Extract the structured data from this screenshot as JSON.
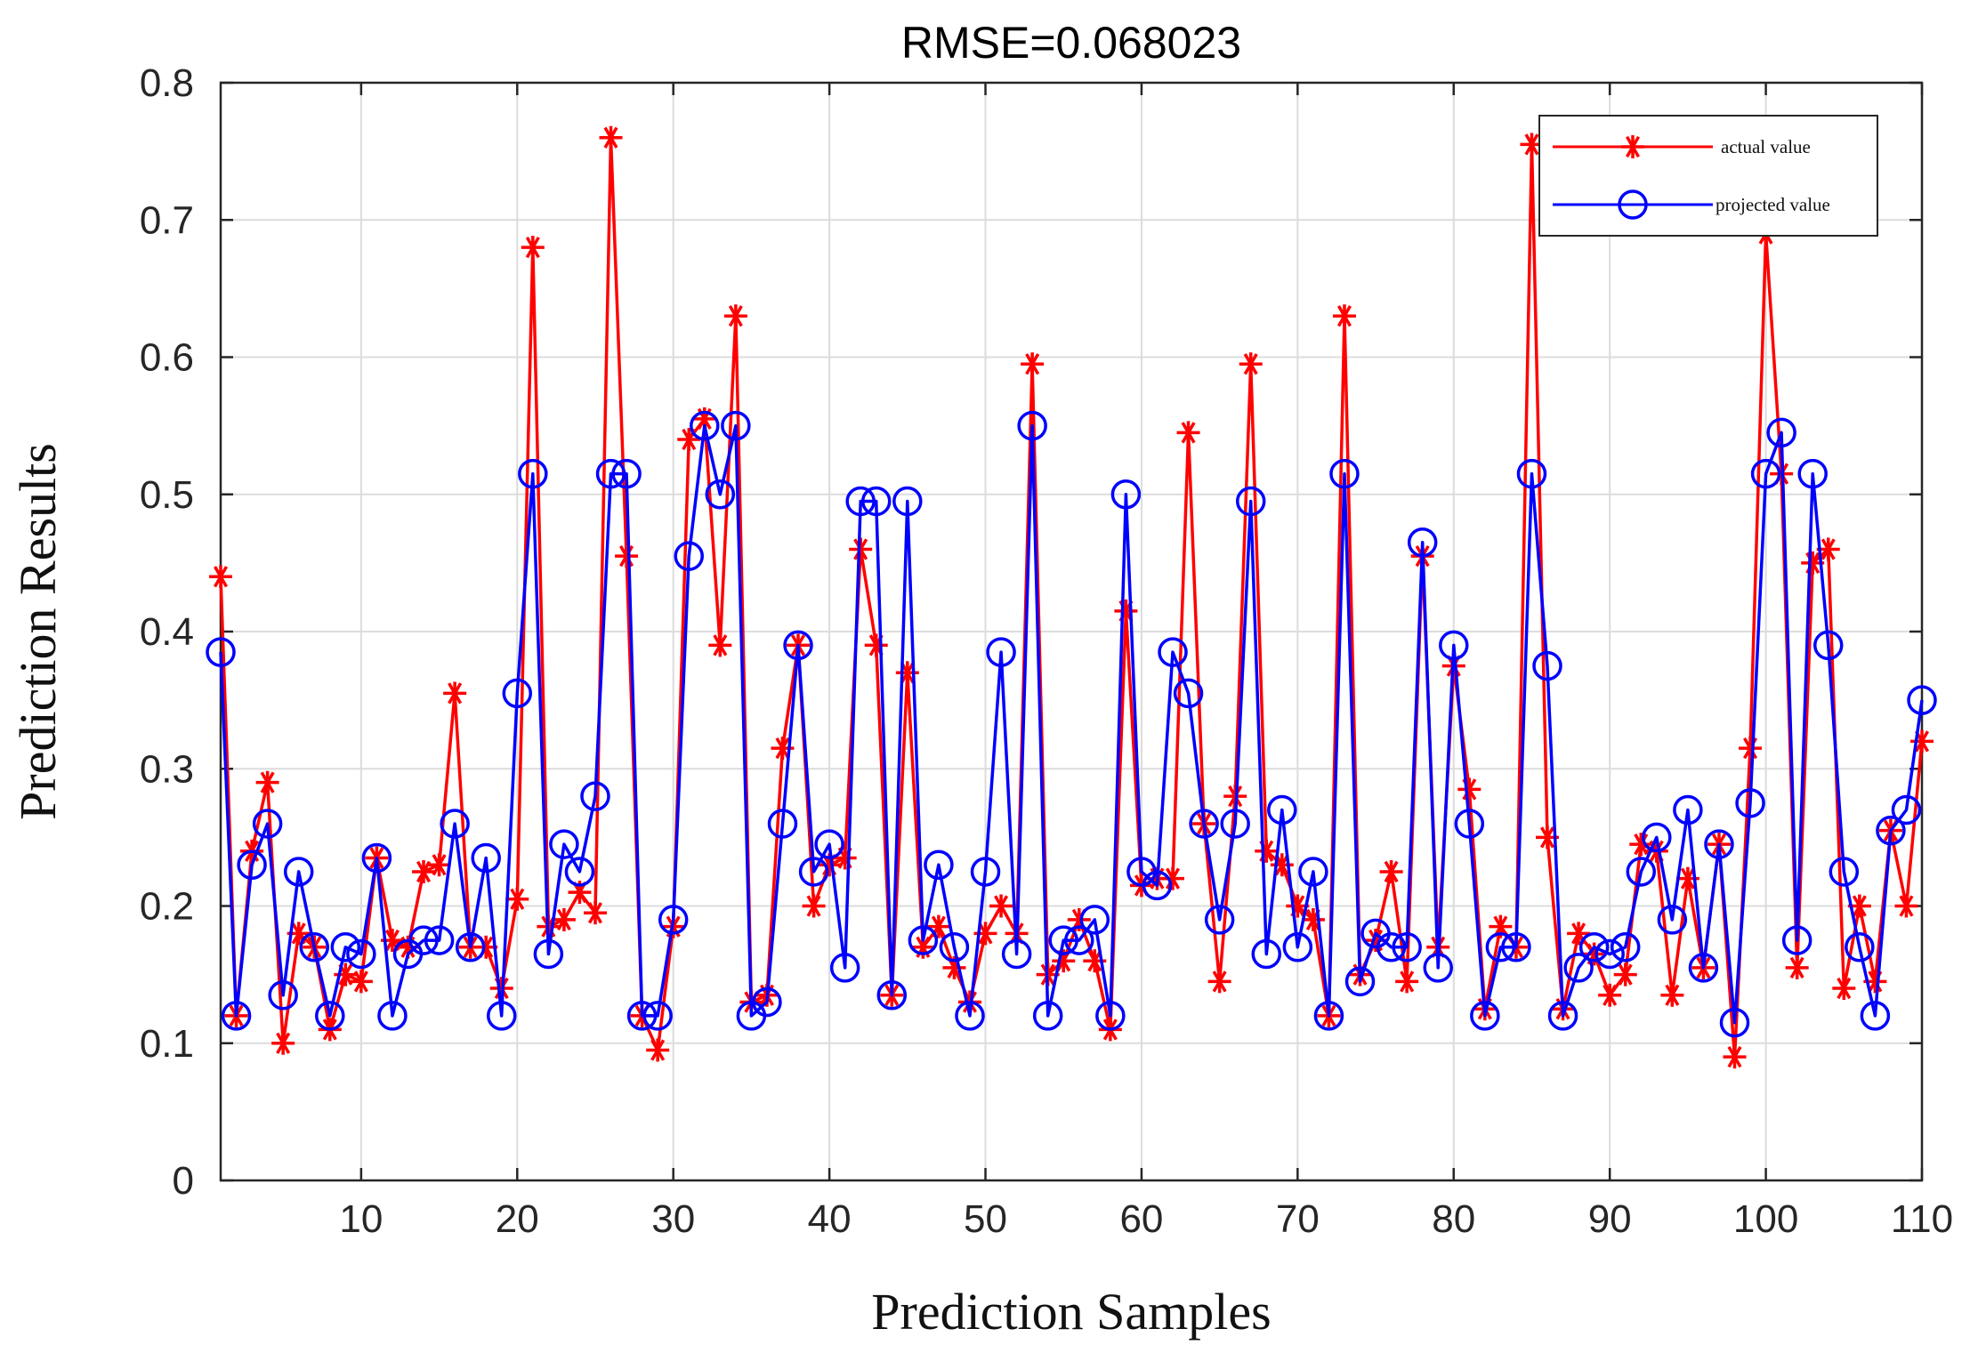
{
  "chart_data": {
    "type": "line",
    "title": "RMSE=0.068023",
    "xlabel": "Prediction Samples",
    "ylabel": "Prediction Results",
    "xlim": [
      1,
      110
    ],
    "ylim": [
      0,
      0.8
    ],
    "x_ticks": [
      10,
      20,
      30,
      40,
      50,
      60,
      70,
      80,
      90,
      100,
      110
    ],
    "y_ticks": [
      0,
      0.1,
      0.2,
      0.3,
      0.4,
      0.5,
      0.6,
      0.7,
      0.8
    ],
    "y_tick_labels": [
      "0",
      "0.1",
      "0.2",
      "0.3",
      "0.4",
      "0.5",
      "0.6",
      "0.7",
      "0.8"
    ],
    "grid": true,
    "legend_position": "top-right",
    "colors": {
      "actual": "#ff0000",
      "projected": "#0000ff"
    },
    "series": [
      {
        "name": "actual value",
        "marker": "asterisk",
        "values": [
          0.44,
          0.12,
          0.24,
          0.29,
          0.1,
          0.18,
          0.17,
          0.11,
          0.15,
          0.145,
          0.235,
          0.175,
          0.17,
          0.225,
          0.23,
          0.355,
          0.17,
          0.17,
          0.14,
          0.205,
          0.68,
          0.185,
          0.19,
          0.21,
          0.195,
          0.76,
          0.455,
          0.12,
          0.095,
          0.185,
          0.54,
          0.555,
          0.39,
          0.63,
          0.13,
          0.135,
          0.315,
          0.39,
          0.2,
          0.23,
          0.235,
          0.46,
          0.39,
          0.135,
          0.37,
          0.17,
          0.185,
          0.155,
          0.13,
          0.18,
          0.2,
          0.18,
          0.595,
          0.15,
          0.16,
          0.19,
          0.16,
          0.11,
          0.415,
          0.215,
          0.22,
          0.22,
          0.545,
          0.26,
          0.145,
          0.28,
          0.595,
          0.24,
          0.23,
          0.2,
          0.19,
          0.12,
          0.63,
          0.15,
          0.175,
          0.225,
          0.145,
          0.455,
          0.17,
          0.375,
          0.285,
          0.125,
          0.185,
          0.17,
          0.755,
          0.25,
          0.125,
          0.18,
          0.165,
          0.135,
          0.15,
          0.245,
          0.24,
          0.135,
          0.22,
          0.155,
          0.245,
          0.09,
          0.315,
          0.69,
          0.515,
          0.155,
          0.45,
          0.46,
          0.14,
          0.2,
          0.145,
          0.255,
          0.2,
          0.32
        ]
      },
      {
        "name": "projected value",
        "marker": "circle",
        "values": [
          0.385,
          0.12,
          0.23,
          0.26,
          0.135,
          0.225,
          0.17,
          0.12,
          0.17,
          0.165,
          0.235,
          0.12,
          0.165,
          0.175,
          0.175,
          0.26,
          0.17,
          0.235,
          0.12,
          0.355,
          0.515,
          0.165,
          0.245,
          0.225,
          0.28,
          0.515,
          0.515,
          0.12,
          0.12,
          0.19,
          0.455,
          0.55,
          0.5,
          0.55,
          0.12,
          0.13,
          0.26,
          0.39,
          0.225,
          0.245,
          0.155,
          0.495,
          0.495,
          0.135,
          0.495,
          0.175,
          0.23,
          0.17,
          0.12,
          0.225,
          0.385,
          0.165,
          0.55,
          0.12,
          0.175,
          0.175,
          0.19,
          0.12,
          0.5,
          0.225,
          0.215,
          0.385,
          0.355,
          0.26,
          0.19,
          0.26,
          0.495,
          0.165,
          0.27,
          0.17,
          0.225,
          0.12,
          0.515,
          0.145,
          0.18,
          0.17,
          0.17,
          0.465,
          0.155,
          0.39,
          0.26,
          0.12,
          0.17,
          0.17,
          0.515,
          0.375,
          0.12,
          0.155,
          0.17,
          0.165,
          0.17,
          0.225,
          0.25,
          0.19,
          0.27,
          0.155,
          0.245,
          0.115,
          0.275,
          0.515,
          0.545,
          0.175,
          0.515,
          0.39,
          0.225,
          0.17,
          0.12,
          0.255,
          0.27,
          0.35
        ]
      }
    ]
  }
}
